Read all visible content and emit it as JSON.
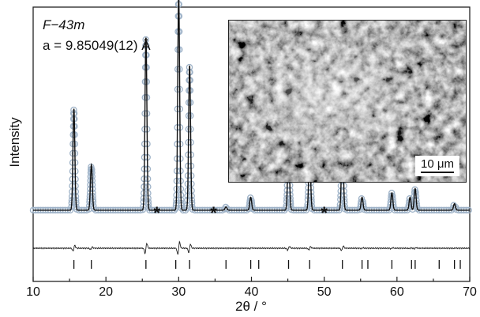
{
  "annotations": {
    "space_group": "F−43m",
    "lattice": "a = 9.85049(12) Å",
    "star": "*"
  },
  "inset": {
    "scale_label": "10 μm"
  },
  "colors": {
    "observed": "#9fb3c8",
    "calculated": "#111111",
    "difference": "#222222",
    "reflections": "#111111"
  },
  "chart_data": {
    "type": "line",
    "xlabel": "2θ / °",
    "ylabel": "Intensity",
    "xlim": [
      10,
      70
    ],
    "xticks": [
      10,
      20,
      30,
      40,
      50,
      60,
      70
    ],
    "ylim": [
      0,
      100
    ],
    "grid": false,
    "background_level": 7,
    "peaks": [
      {
        "x": 15.6,
        "y": 47
      },
      {
        "x": 18.0,
        "y": 21
      },
      {
        "x": 25.5,
        "y": 80
      },
      {
        "x": 30.0,
        "y": 100
      },
      {
        "x": 31.5,
        "y": 67
      },
      {
        "x": 36.5,
        "y": 1.5
      },
      {
        "x": 39.9,
        "y": 6
      },
      {
        "x": 45.1,
        "y": 30
      },
      {
        "x": 48.0,
        "y": 27
      },
      {
        "x": 52.5,
        "y": 37
      },
      {
        "x": 55.2,
        "y": 6
      },
      {
        "x": 59.3,
        "y": 8
      },
      {
        "x": 61.8,
        "y": 6
      },
      {
        "x": 62.5,
        "y": 10
      },
      {
        "x": 67.9,
        "y": 3
      }
    ],
    "impurity_marks": [
      27.0,
      34.8,
      50.0
    ],
    "reflections": [
      15.6,
      18.0,
      25.5,
      29.6,
      31.5,
      36.5,
      39.9,
      41.0,
      45.1,
      48.0,
      52.5,
      55.2,
      56.0,
      59.3,
      62.0,
      62.5,
      65.8,
      67.9,
      68.7
    ],
    "series": [
      {
        "style": "observed"
      },
      {
        "style": "calculated"
      },
      {
        "style": "difference"
      },
      {
        "style": "reflections"
      }
    ]
  }
}
